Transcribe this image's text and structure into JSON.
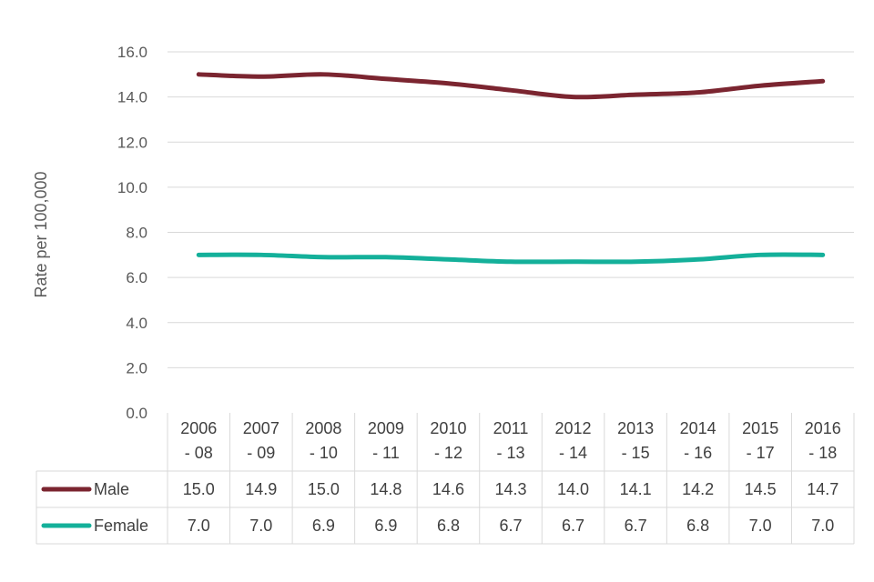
{
  "chart_data": {
    "type": "line",
    "title": "",
    "xlabel": "",
    "ylabel": "Rate per 100,000",
    "ylim": [
      0,
      16
    ],
    "yticks": [
      "0.0",
      "2.0",
      "4.0",
      "6.0",
      "8.0",
      "10.0",
      "12.0",
      "14.0",
      "16.0"
    ],
    "grid": true,
    "legend": "data table below chart",
    "categories": [
      [
        "2006",
        "- 08"
      ],
      [
        "2007",
        "- 09"
      ],
      [
        "2008",
        "- 10"
      ],
      [
        "2009",
        "- 11"
      ],
      [
        "2010",
        "- 12"
      ],
      [
        "2011",
        "- 13"
      ],
      [
        "2012",
        "- 14"
      ],
      [
        "2013",
        "- 15"
      ],
      [
        "2014",
        "- 16"
      ],
      [
        "2015",
        "- 17"
      ],
      [
        "2016",
        "- 18"
      ]
    ],
    "series": [
      {
        "name": "Male",
        "color": "#7B2530",
        "values": [
          15.0,
          14.9,
          15.0,
          14.8,
          14.6,
          14.3,
          14.0,
          14.1,
          14.2,
          14.5,
          14.7
        ],
        "labels": [
          "15.0",
          "14.9",
          "15.0",
          "14.8",
          "14.6",
          "14.3",
          "14.0",
          "14.1",
          "14.2",
          "14.5",
          "14.7"
        ]
      },
      {
        "name": "Female",
        "color": "#14B09A",
        "values": [
          7.0,
          7.0,
          6.9,
          6.9,
          6.8,
          6.7,
          6.7,
          6.7,
          6.8,
          7.0,
          7.0
        ],
        "labels": [
          "7.0",
          "7.0",
          "6.9",
          "6.9",
          "6.8",
          "6.7",
          "6.7",
          "6.7",
          "6.8",
          "7.0",
          "7.0"
        ]
      }
    ]
  }
}
